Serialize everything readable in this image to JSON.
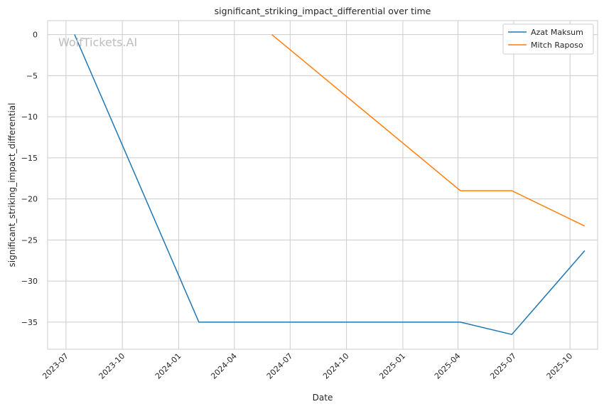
{
  "chart_data": {
    "type": "line",
    "title": "significant_striking_impact_differential over time",
    "xlabel": "Date",
    "ylabel": "significant_striking_impact_differential",
    "watermark": "WolfTickets.AI",
    "x_ticks": [
      "2023-07",
      "2023-10",
      "2024-01",
      "2024-04",
      "2024-07",
      "2024-10",
      "2025-01",
      "2025-04",
      "2025-07",
      "2025-10"
    ],
    "y_ticks": [
      0,
      -5,
      -10,
      -15,
      -20,
      -25,
      -30,
      -35
    ],
    "xlim": [
      "2023-06-01",
      "2025-11-15"
    ],
    "ylim": [
      -38.3,
      1.7
    ],
    "grid": true,
    "legend_position": "top-right",
    "series": [
      {
        "name": "Azat Maksum",
        "color": "#1f77b4",
        "points": [
          {
            "x": "2023-07-15",
            "y": 0
          },
          {
            "x": "2024-02-03",
            "y": -35
          },
          {
            "x": "2025-04-05",
            "y": -35
          },
          {
            "x": "2025-06-28",
            "y": -36.5
          },
          {
            "x": "2025-10-25",
            "y": -26.3
          }
        ]
      },
      {
        "name": "Mitch Raposo",
        "color": "#ff7f0e",
        "points": [
          {
            "x": "2024-06-01",
            "y": 0
          },
          {
            "x": "2025-04-05",
            "y": -19
          },
          {
            "x": "2025-06-28",
            "y": -19
          },
          {
            "x": "2025-10-25",
            "y": -23.3
          }
        ]
      }
    ]
  }
}
